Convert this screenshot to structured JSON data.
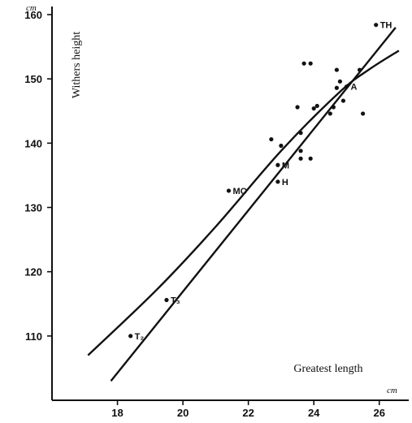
{
  "chart_data": {
    "type": "scatter",
    "title": "",
    "xlabel": "Greatest length",
    "ylabel": "Withers height",
    "x_unit": "cm",
    "y_unit": "cm",
    "xlim": [
      16,
      27
    ],
    "ylim": [
      100,
      160
    ],
    "x_ticks": [
      18,
      20,
      22,
      24,
      26
    ],
    "y_ticks": [
      110,
      120,
      130,
      140,
      150,
      160
    ],
    "grid": false,
    "points": [
      {
        "x": 18.4,
        "y": 110,
        "label": "T₂"
      },
      {
        "x": 19.5,
        "y": 115.6,
        "label": "T₃"
      },
      {
        "x": 21.4,
        "y": 132.6,
        "label": "MO"
      },
      {
        "x": 22.7,
        "y": 140.6,
        "label": ""
      },
      {
        "x": 22.9,
        "y": 136.6,
        "label": "M"
      },
      {
        "x": 22.9,
        "y": 134,
        "label": "H"
      },
      {
        "x": 23.0,
        "y": 139.6,
        "label": ""
      },
      {
        "x": 23.5,
        "y": 145.6,
        "label": ""
      },
      {
        "x": 23.6,
        "y": 141.6,
        "label": ""
      },
      {
        "x": 23.6,
        "y": 138.8,
        "label": ""
      },
      {
        "x": 23.6,
        "y": 137.6,
        "label": ""
      },
      {
        "x": 23.7,
        "y": 152.4,
        "label": ""
      },
      {
        "x": 23.9,
        "y": 152.4,
        "label": ""
      },
      {
        "x": 23.9,
        "y": 137.6,
        "label": ""
      },
      {
        "x": 24.0,
        "y": 145.4,
        "label": ""
      },
      {
        "x": 24.1,
        "y": 145.8,
        "label": ""
      },
      {
        "x": 24.5,
        "y": 144.6,
        "label": ""
      },
      {
        "x": 24.6,
        "y": 145.6,
        "label": ""
      },
      {
        "x": 24.7,
        "y": 151.4,
        "label": ""
      },
      {
        "x": 24.7,
        "y": 148.6,
        "label": ""
      },
      {
        "x": 24.8,
        "y": 149.6,
        "label": ""
      },
      {
        "x": 24.9,
        "y": 146.6,
        "label": ""
      },
      {
        "x": 25.0,
        "y": 148.8,
        "label": "A"
      },
      {
        "x": 25.4,
        "y": 151.4,
        "label": ""
      },
      {
        "x": 25.5,
        "y": 144.6,
        "label": ""
      },
      {
        "x": 25.9,
        "y": 158.4,
        "label": "TH"
      }
    ],
    "lines": [
      {
        "name": "",
        "x": [
          17.8,
          26.5
        ],
        "y": [
          103,
          158
        ],
        "curved": false
      },
      {
        "name": "",
        "x": [
          17.1,
          19.2,
          21.0,
          23.0,
          24.8,
          25.7,
          26.6
        ],
        "y": [
          107,
          117.2,
          127,
          138.8,
          148,
          151.5,
          154.4
        ],
        "curved": true
      }
    ]
  }
}
